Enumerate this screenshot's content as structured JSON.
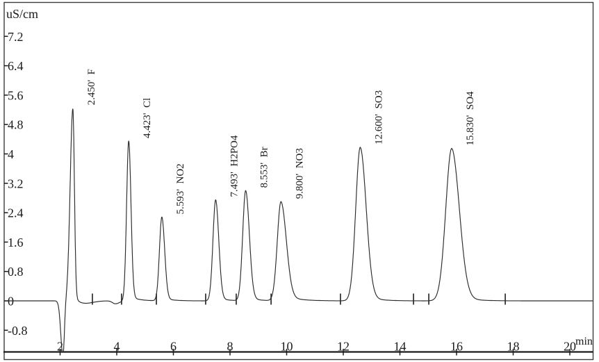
{
  "chart_data": {
    "type": "line",
    "title": "",
    "ylabel": "uS/cm",
    "xlabel": "min",
    "grid": false,
    "legend": null,
    "xlim_min": [
      0,
      20.8
    ],
    "ylim_uScm": [
      -1.45,
      7.6
    ],
    "baseline_value_uScm": 0,
    "x_ticks": [
      {
        "value": 2,
        "label": "2"
      },
      {
        "value": 4,
        "label": "4"
      },
      {
        "value": 6,
        "label": "6"
      },
      {
        "value": 8,
        "label": "8"
      },
      {
        "value": 10,
        "label": "10"
      },
      {
        "value": 12,
        "label": "12"
      },
      {
        "value": 14,
        "label": "14"
      },
      {
        "value": 16,
        "label": "16"
      },
      {
        "value": 18,
        "label": "18"
      },
      {
        "value": 20,
        "label": "20"
      }
    ],
    "y_ticks": [
      {
        "value": 7.2,
        "label": "7.2"
      },
      {
        "value": 6.4,
        "label": "6.4"
      },
      {
        "value": 5.6,
        "label": "5.6"
      },
      {
        "value": 4.8,
        "label": "4.8"
      },
      {
        "value": 4,
        "label": "4"
      },
      {
        "value": 3.2,
        "label": "3.2"
      },
      {
        "value": 2.4,
        "label": "2.4"
      },
      {
        "value": 1.6,
        "label": "1.6"
      },
      {
        "value": 0.8,
        "label": "0.8"
      },
      {
        "value": 0,
        "label": "0"
      },
      {
        "value": -0.8,
        "label": "-0.8"
      }
    ],
    "peaks": [
      {
        "name": "F",
        "label": "2.450'  F",
        "rt_label": "2.450'",
        "rt_min": 2.45,
        "height_uScm": 5.25,
        "sigma_left": 0.095,
        "sigma_right": 0.055,
        "tail_frac": 0.03,
        "tail_tau": 0.22
      },
      {
        "name": "Cl",
        "label": "4.423'  Cl",
        "rt_label": "4.423'",
        "rt_min": 4.423,
        "height_uScm": 4.35,
        "sigma_left": 0.075,
        "sigma_right": 0.08,
        "tail_frac": 0.035,
        "tail_tau": 0.28
      },
      {
        "name": "NO2",
        "label": "5.593'  NO2",
        "rt_label": "5.593'",
        "rt_min": 5.593,
        "height_uScm": 2.28,
        "sigma_left": 0.085,
        "sigma_right": 0.1,
        "tail_frac": 0.04,
        "tail_tau": 0.3
      },
      {
        "name": "H2PO4",
        "label": "7.493'  H2PO4",
        "rt_label": "7.493'",
        "rt_min": 7.493,
        "height_uScm": 2.75,
        "sigma_left": 0.095,
        "sigma_right": 0.11,
        "tail_frac": 0.04,
        "tail_tau": 0.3
      },
      {
        "name": "Br",
        "label": "8.553'  Br",
        "rt_label": "8.553'",
        "rt_min": 8.553,
        "height_uScm": 3.0,
        "sigma_left": 0.105,
        "sigma_right": 0.13,
        "tail_frac": 0.04,
        "tail_tau": 0.32
      },
      {
        "name": "NO3",
        "label": "9.800'  NO3",
        "rt_label": "9.800'",
        "rt_min": 9.8,
        "height_uScm": 2.7,
        "sigma_left": 0.13,
        "sigma_right": 0.19,
        "tail_frac": 0.07,
        "tail_tau": 0.45
      },
      {
        "name": "SO3",
        "label": "12.600'  SO3",
        "rt_label": "12.600'",
        "rt_min": 12.6,
        "height_uScm": 4.18,
        "sigma_left": 0.16,
        "sigma_right": 0.21,
        "tail_frac": 0.05,
        "tail_tau": 0.4
      },
      {
        "name": "SO4",
        "label": "15.830'  SO4",
        "rt_label": "15.830'",
        "rt_min": 15.83,
        "height_uScm": 4.15,
        "sigma_left": 0.21,
        "sigma_right": 0.27,
        "tail_frac": 0.05,
        "tail_tau": 0.45
      }
    ],
    "trace_artifacts": [
      {
        "name": "injection-dip",
        "rt_min": 2.1,
        "height_uScm": -1.5,
        "sigma_left": 0.075,
        "sigma_right": 0.05
      },
      {
        "name": "post-F-undershoot",
        "rt_min": 2.8,
        "height_uScm": -0.09,
        "sigma_left": 0.22,
        "sigma_right": 0.32
      },
      {
        "name": "baseline-dip",
        "rt_min": 3.95,
        "height_uScm": -0.08,
        "sigma_left": 0.1,
        "sigma_right": 0.14
      }
    ],
    "baseline_marks_min": [
      3.14,
      4.17,
      5.4,
      7.14,
      8.22,
      9.45,
      11.9,
      14.48,
      15.02,
      17.72
    ],
    "colors": {
      "trace": "#2b2b2b",
      "axis": "#1a1a1a",
      "frame": "#3c3c3c",
      "text": "#1a1a1a"
    }
  }
}
